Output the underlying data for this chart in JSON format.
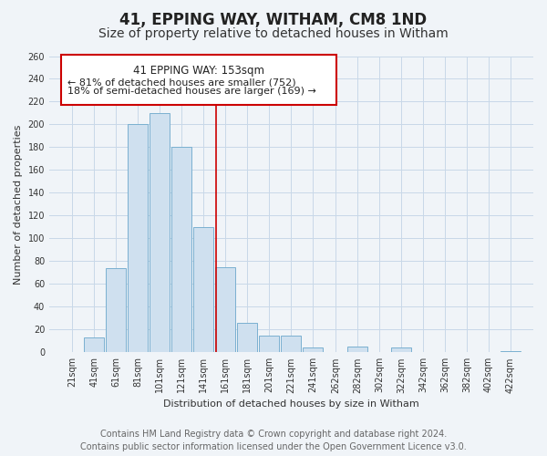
{
  "title": "41, EPPING WAY, WITHAM, CM8 1ND",
  "subtitle": "Size of property relative to detached houses in Witham",
  "xlabel": "Distribution of detached houses by size in Witham",
  "ylabel": "Number of detached properties",
  "bar_labels": [
    "21sqm",
    "41sqm",
    "61sqm",
    "81sqm",
    "101sqm",
    "121sqm",
    "141sqm",
    "161sqm",
    "181sqm",
    "201sqm",
    "221sqm",
    "241sqm",
    "262sqm",
    "282sqm",
    "302sqm",
    "322sqm",
    "342sqm",
    "362sqm",
    "382sqm",
    "402sqm",
    "422sqm"
  ],
  "bar_values": [
    0,
    13,
    74,
    200,
    210,
    180,
    110,
    75,
    26,
    15,
    15,
    4,
    0,
    5,
    0,
    4,
    0,
    0,
    0,
    0,
    1
  ],
  "bar_color": "#cfe0ef",
  "bar_edge_color": "#7ab0d0",
  "ylim": [
    0,
    260
  ],
  "yticks": [
    0,
    20,
    40,
    60,
    80,
    100,
    120,
    140,
    160,
    180,
    200,
    220,
    240,
    260
  ],
  "annotation_title": "41 EPPING WAY: 153sqm",
  "annotation_line1": "← 81% of detached houses are smaller (752)",
  "annotation_line2": "18% of semi-detached houses are larger (169) →",
  "annotation_box_color": "#ffffff",
  "annotation_box_edge_color": "#cc0000",
  "vline_x": 153,
  "vline_color": "#cc0000",
  "footer_line1": "Contains HM Land Registry data © Crown copyright and database right 2024.",
  "footer_line2": "Contains public sector information licensed under the Open Government Licence v3.0.",
  "bg_color": "#f0f4f8",
  "plot_bg_color": "#f0f4f8",
  "grid_color": "#c8d8e8",
  "title_fontsize": 12,
  "subtitle_fontsize": 10,
  "footer_fontsize": 7,
  "axis_label_fontsize": 8,
  "tick_fontsize": 7
}
